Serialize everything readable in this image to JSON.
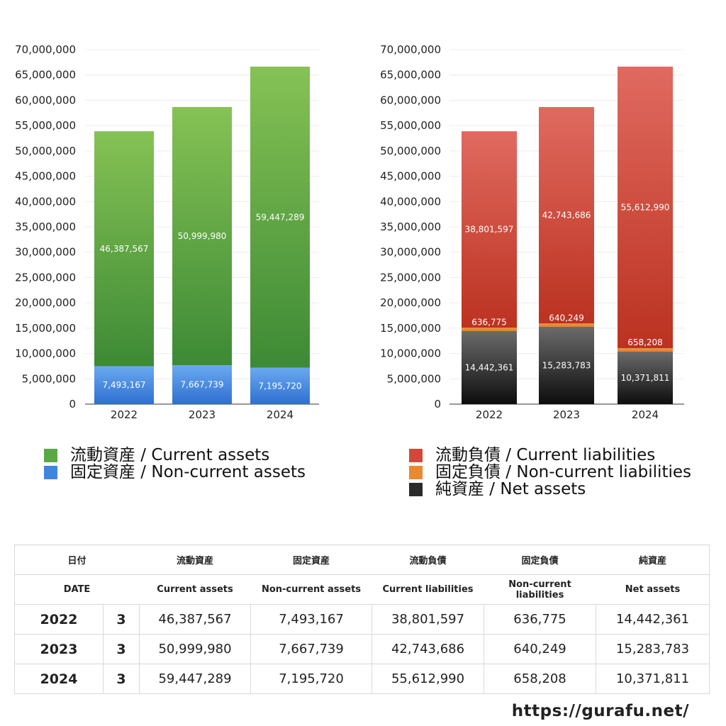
{
  "chart_data": [
    {
      "type": "bar",
      "stacked": true,
      "title": "",
      "categories": [
        "2022",
        "2023",
        "2024"
      ],
      "ylim": [
        0,
        70000000
      ],
      "yticks": [
        0,
        5000000,
        10000000,
        15000000,
        20000000,
        25000000,
        30000000,
        35000000,
        40000000,
        45000000,
        50000000,
        55000000,
        60000000,
        65000000,
        70000000
      ],
      "ytick_labels": [
        "0",
        "5,000,000",
        "10,000,000",
        "15,000,000",
        "20,000,000",
        "25,000,000",
        "30,000,000",
        "35,000,000",
        "40,000,000",
        "45,000,000",
        "50,000,000",
        "55,000,000",
        "60,000,000",
        "65,000,000",
        "70,000,000"
      ],
      "series": [
        {
          "name": "固定資産 / Non-current assets",
          "values": [
            7493167,
            7667739,
            7195720
          ],
          "labels": [
            "7,493,167",
            "7,667,739",
            "7,195,720"
          ],
          "color_top": "#6aa9f0",
          "color_bottom": "#2f6fd1"
        },
        {
          "name": "流動資産 / Current assets",
          "values": [
            46387567,
            50999980,
            59447289
          ],
          "labels": [
            "46,387,567",
            "50,999,980",
            "59,447,289"
          ],
          "color_top": "#86c255",
          "color_bottom": "#3d8a35"
        }
      ],
      "legend": [
        "流動資産 / Current assets",
        "固定資産 / Non-current assets"
      ],
      "legend_position": "bottom"
    },
    {
      "type": "bar",
      "stacked": true,
      "title": "",
      "categories": [
        "2022",
        "2023",
        "2024"
      ],
      "ylim": [
        0,
        70000000
      ],
      "yticks": [
        0,
        5000000,
        10000000,
        15000000,
        20000000,
        25000000,
        30000000,
        35000000,
        40000000,
        45000000,
        50000000,
        55000000,
        60000000,
        65000000,
        70000000
      ],
      "ytick_labels": [
        "0",
        "5,000,000",
        "10,000,000",
        "15,000,000",
        "20,000,000",
        "25,000,000",
        "30,000,000",
        "35,000,000",
        "40,000,000",
        "45,000,000",
        "50,000,000",
        "55,000,000",
        "60,000,000",
        "65,000,000",
        "70,000,000"
      ],
      "series": [
        {
          "name": "純資産 / Net assets",
          "values": [
            14442361,
            15283783,
            10371811
          ],
          "labels": [
            "14,442,361",
            "15,283,783",
            "10,371,811"
          ],
          "color_top": "#6b6b6b",
          "color_bottom": "#0d0d0d"
        },
        {
          "name": "固定負債 / Non-current liabilities",
          "values": [
            636775,
            640249,
            658208
          ],
          "labels": [
            "636,775",
            "640,249",
            "658,208"
          ],
          "color_top": "#f09a40",
          "color_bottom": "#e07a20"
        },
        {
          "name": "流動負債 / Current liabilities",
          "values": [
            38801597,
            42743686,
            55612990
          ],
          "labels": [
            "38,801,597",
            "42,743,686",
            "55,612,990"
          ],
          "color_top": "#e06a60",
          "color_bottom": "#bb3220"
        }
      ],
      "legend": [
        "流動負債 / Current liabilities",
        "固定負債 / Non-current liabilities",
        "純資産 / Net assets"
      ],
      "legend_position": "bottom"
    }
  ],
  "legend_assets": [
    {
      "label": "流動資産 / Current assets",
      "color": "#5aa845"
    },
    {
      "label": "固定資産 / Non-current assets",
      "color": "#3f85e0"
    }
  ],
  "legend_liabilities": [
    {
      "label": "流動負債 / Current liabilities",
      "color": "#d2493a"
    },
    {
      "label": "固定負債 / Non-current liabilities",
      "color": "#ea8a30"
    },
    {
      "label": "純資産 / Net assets",
      "color": "#2a2a2a"
    }
  ],
  "table": {
    "headers_jp": [
      "日付",
      "流動資産",
      "固定資産",
      "流動負債",
      "固定負債",
      "純資産"
    ],
    "headers_en": [
      "DATE",
      "Current assets",
      "Non-current assets",
      "Current liabilities",
      "Non-current liabilities",
      "Net assets"
    ],
    "rows": [
      {
        "year": "2022",
        "month": "3",
        "cells": [
          "46,387,567",
          "7,493,167",
          "38,801,597",
          "636,775",
          "14,442,361"
        ]
      },
      {
        "year": "2023",
        "month": "3",
        "cells": [
          "50,999,980",
          "7,667,739",
          "42,743,686",
          "640,249",
          "15,283,783"
        ]
      },
      {
        "year": "2024",
        "month": "3",
        "cells": [
          "59,447,289",
          "7,195,720",
          "55,612,990",
          "658,208",
          "10,371,811"
        ]
      }
    ]
  },
  "source_url": "https://gurafu.net/"
}
